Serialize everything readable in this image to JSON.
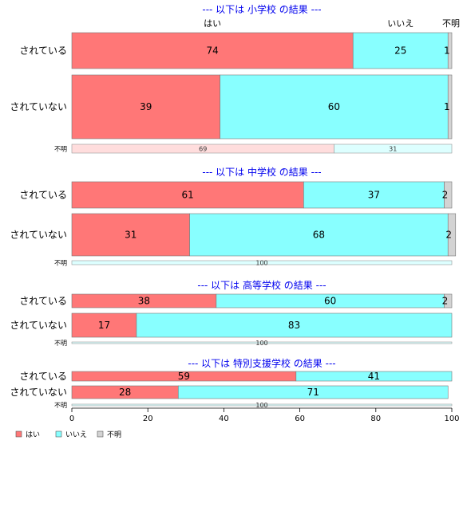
{
  "chart_data": {
    "type": "bar",
    "orientation": "horizontal",
    "stacked": true,
    "categories_top": [
      "はい",
      "いいえ",
      "不明"
    ],
    "legend": [
      "はい",
      "いいえ",
      "不明"
    ],
    "colors": {
      "yes": "#ff7777",
      "no": "#88ffff",
      "unknown": "#d3d3d3",
      "yes_light": "#ffdddd",
      "no_light": "#ddffff",
      "title": "#0000ee"
    },
    "xlim": [
      0,
      100
    ],
    "xticks": [
      0,
      20,
      40,
      60,
      80,
      100
    ],
    "legend_position": "bottom-left",
    "sections": [
      {
        "title": "--- 以下は 小学校 の結果 ---",
        "rows": [
          {
            "label": "されている",
            "values": [
              74,
              25,
              1
            ]
          },
          {
            "label": "されていない",
            "values": [
              39,
              60,
              1
            ]
          }
        ],
        "unknown_row": {
          "label": "不明",
          "values": [
            69,
            31,
            0
          ]
        }
      },
      {
        "title": "--- 以下は 中学校 の結果 ---",
        "rows": [
          {
            "label": "されている",
            "values": [
              61,
              37,
              2
            ]
          },
          {
            "label": "されていない",
            "values": [
              31,
              68,
              2
            ]
          }
        ],
        "unknown_row": {
          "label": "不明",
          "values": [
            0,
            100,
            0
          ]
        }
      },
      {
        "title": "--- 以下は 高等学校 の結果 ---",
        "rows": [
          {
            "label": "されている",
            "values": [
              38,
              60,
              2
            ]
          },
          {
            "label": "されていない",
            "values": [
              17,
              83,
              0
            ]
          }
        ],
        "unknown_row": {
          "label": "不明",
          "values": [
            0,
            100,
            0
          ]
        }
      },
      {
        "title": "--- 以下は 特別支援学校 の結果 ---",
        "rows": [
          {
            "label": "されている",
            "values": [
              59,
              41,
              0
            ]
          },
          {
            "label": "されていない",
            "values": [
              28,
              71,
              0
            ]
          }
        ],
        "unknown_row": {
          "label": "不明",
          "values": [
            0,
            100,
            0
          ]
        }
      }
    ]
  }
}
